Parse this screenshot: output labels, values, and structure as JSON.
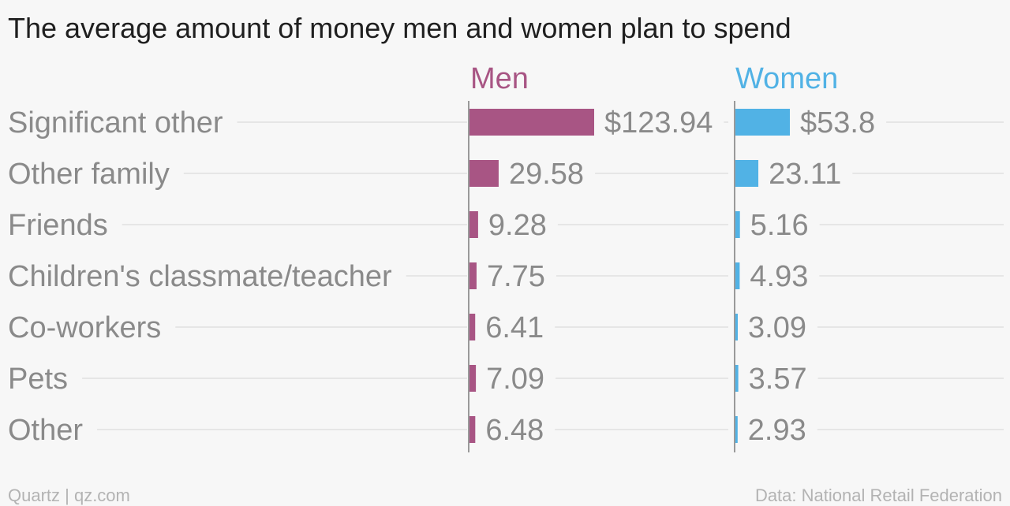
{
  "title": "The average amount of money men and women plan to spend",
  "footer": {
    "left": "Quartz | qz.com",
    "right": "Data: National Retail Federation"
  },
  "colors": {
    "men": "#a85584",
    "women": "#51b2e5",
    "gridline": "#e6e6e6",
    "axis": "#9a9a9a"
  },
  "chart_data": {
    "type": "bar",
    "orientation": "horizontal",
    "categories": [
      "Significant other",
      "Other family",
      "Friends",
      "Children's classmate/teacher",
      "Co-workers",
      "Pets",
      "Other"
    ],
    "series": [
      {
        "name": "Men",
        "values": [
          123.94,
          29.58,
          9.28,
          7.75,
          6.41,
          7.09,
          6.48
        ],
        "labels": [
          "$123.94",
          "29.58",
          "9.28",
          "7.75",
          "6.41",
          "7.09",
          "6.48"
        ]
      },
      {
        "name": "Women",
        "values": [
          53.8,
          23.11,
          5.16,
          4.93,
          3.09,
          3.57,
          2.93
        ],
        "labels": [
          "$53.8",
          "23.11",
          "5.16",
          "4.93",
          "3.09",
          "3.57",
          "2.93"
        ]
      }
    ],
    "grid": true,
    "legend": "panel titles above each column"
  }
}
